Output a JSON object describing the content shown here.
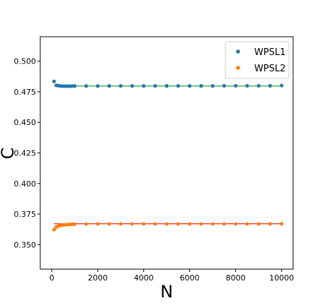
{
  "chart_data": {
    "type": "scatter",
    "xlabel": "N",
    "ylabel": "C",
    "xlim": [
      -500,
      10500
    ],
    "ylim": [
      0.33,
      0.52
    ],
    "x_ticks": [
      0,
      2000,
      4000,
      6000,
      8000,
      10000
    ],
    "x_tick_labels": [
      "0",
      "2000",
      "4000",
      "6000",
      "8000",
      "10000"
    ],
    "y_ticks": [
      0.35,
      0.375,
      0.4,
      0.425,
      0.45,
      0.475,
      0.5
    ],
    "y_tick_labels": [
      "0.350",
      "0.375",
      "0.400",
      "0.425",
      "0.450",
      "0.475",
      "0.500"
    ],
    "grid": false,
    "legend_position": "top-right",
    "series": [
      {
        "name": "WPSL1",
        "color": "#1f77b4",
        "line_color": "#2ca02c",
        "fit_value": 0.4797,
        "x": [
          100,
          200,
          300,
          400,
          500,
          600,
          700,
          800,
          900,
          1000,
          1500,
          2000,
          2500,
          3000,
          3500,
          4000,
          4500,
          5000,
          5500,
          6000,
          6500,
          7000,
          7500,
          8000,
          8500,
          9000,
          9500,
          10000
        ],
        "y": [
          0.4835,
          0.4803,
          0.48,
          0.4797,
          0.4796,
          0.4796,
          0.4796,
          0.4796,
          0.4797,
          0.4797,
          0.4797,
          0.4797,
          0.4798,
          0.4798,
          0.4798,
          0.4798,
          0.4798,
          0.4798,
          0.4798,
          0.4798,
          0.4798,
          0.4798,
          0.4799,
          0.4799,
          0.4799,
          0.4799,
          0.4799,
          0.4801
        ]
      },
      {
        "name": "WPSL2",
        "color": "#ff7f0e",
        "line_color": "#d62728",
        "fit_value": 0.3671,
        "x": [
          100,
          200,
          300,
          400,
          500,
          600,
          700,
          800,
          900,
          1000,
          1500,
          2000,
          2500,
          3000,
          3500,
          4000,
          4500,
          5000,
          5500,
          6000,
          6500,
          7000,
          7500,
          8000,
          8500,
          9000,
          9500,
          10000
        ],
        "y": [
          0.3623,
          0.3645,
          0.3654,
          0.3658,
          0.3661,
          0.3663,
          0.3665,
          0.3666,
          0.3667,
          0.3668,
          0.3669,
          0.367,
          0.367,
          0.367,
          0.367,
          0.367,
          0.367,
          0.367,
          0.367,
          0.367,
          0.367,
          0.367,
          0.367,
          0.367,
          0.367,
          0.367,
          0.367,
          0.3671
        ]
      }
    ]
  }
}
